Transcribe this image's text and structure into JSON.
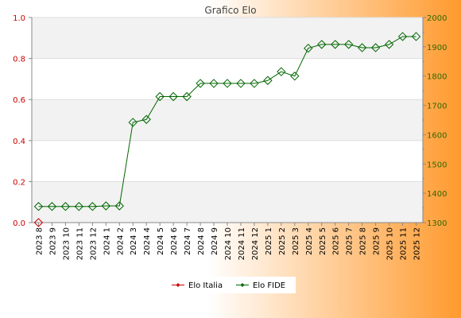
{
  "chart_data": {
    "type": "line",
    "title": "Grafico Elo",
    "categories": [
      "2023 8",
      "2023 9",
      "2023 10",
      "2023 11",
      "2023 12",
      "2024 1",
      "2024 2",
      "2024 3",
      "2024 4",
      "2024 5",
      "2024 6",
      "2024 7",
      "2024 8",
      "2024 9",
      "2024 10",
      "2024 11",
      "2024 12",
      "2025 1",
      "2025 2",
      "2025 3",
      "2025 4",
      "2025 5",
      "2025 6",
      "2025 7",
      "2025 8",
      "2025 9",
      "2025 10",
      "2025 11",
      "2025 12"
    ],
    "left_axis": {
      "ylim": [
        0,
        1
      ],
      "ticks": [
        "0.0",
        "0.2",
        "0.4",
        "0.6",
        "0.8",
        "1.0"
      ],
      "color": "#cc0000"
    },
    "right_axis": {
      "ylim": [
        1300,
        2000
      ],
      "ticks": [
        "1300",
        "1400",
        "1500",
        "1600",
        "1700",
        "1800",
        "1900",
        "2000"
      ],
      "color": "#336600"
    },
    "grid": "horizontal bands",
    "legend_position": "bottom-center",
    "series": [
      {
        "name": "Elo Italia",
        "axis": "left",
        "color": "#cc0000",
        "marker": "diamond",
        "values": [
          0,
          null,
          null,
          null,
          null,
          null,
          null,
          null,
          null,
          null,
          null,
          null,
          null,
          null,
          null,
          null,
          null,
          null,
          null,
          null,
          null,
          null,
          null,
          null,
          null,
          null,
          null,
          null,
          null
        ]
      },
      {
        "name": "Elo FIDE",
        "axis": "right",
        "color": "#006600",
        "marker": "diamond",
        "values": [
          1355,
          1355,
          1355,
          1355,
          1355,
          1357,
          1357,
          1642,
          1652,
          1730,
          1730,
          1730,
          1775,
          1775,
          1775,
          1775,
          1775,
          1785,
          1815,
          1800,
          1895,
          1908,
          1908,
          1908,
          1897,
          1897,
          1908,
          1935,
          1935
        ]
      }
    ]
  }
}
